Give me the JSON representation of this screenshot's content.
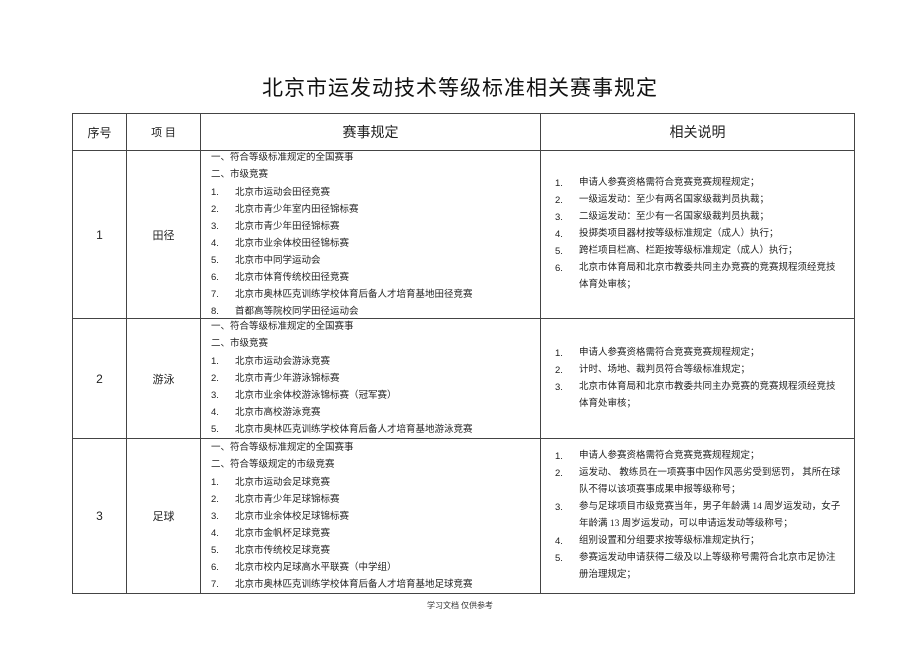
{
  "title": "北京市运发动技术等级标准相关赛事规定",
  "headers": [
    "序号",
    "项 目",
    "赛事规定",
    "相关说明"
  ],
  "rows": [
    {
      "no": "1",
      "sport": "田径",
      "rules": [
        {
          "n": "",
          "t": "一、符合等级标准规定的全国赛事"
        },
        {
          "n": "",
          "t": "二、市级竞赛"
        },
        {
          "n": "1.",
          "t": "北京市运动会田径竞赛"
        },
        {
          "n": "2.",
          "t": "北京市青少年室内田径锦标赛"
        },
        {
          "n": "3.",
          "t": "北京市青少年田径锦标赛"
        },
        {
          "n": "4.",
          "t": "北京市业余体校田径锦标赛"
        },
        {
          "n": "5.",
          "t": "北京市中同学运动会"
        },
        {
          "n": "6.",
          "t": "北京市体育传统校田径竞赛"
        },
        {
          "n": "7.",
          "t": "北京市奥林匹克训练学校体育后备人才培育基地田径竞赛"
        },
        {
          "n": "8.",
          "t": "首都高等院校同学田径运动会"
        }
      ],
      "notes": [
        {
          "n": "1.",
          "t": "申请人参赛资格需符合竞赛竞赛规程规定；"
        },
        {
          "n": "2.",
          "t": "一级运发动：至少有两名国家级裁判员执裁；"
        },
        {
          "n": "3.",
          "t": "二级运发动：至少有一名国家级裁判员执裁；"
        },
        {
          "n": "4.",
          "t": "投掷类项目器材按等级标准规定（成人）执行；"
        },
        {
          "n": "5.",
          "t": "跨栏项目栏高、栏距按等级标准规定（成人）执行；"
        },
        {
          "n": "6.",
          "t": "北京市体育局和北京市教委共同主办竞赛的竞赛规程须经竞技体育处审核；"
        }
      ]
    },
    {
      "no": "2",
      "sport": "游泳",
      "rules": [
        {
          "n": "",
          "t": "一、符合等级标准规定的全国赛事"
        },
        {
          "n": "",
          "t": "二、市级竞赛"
        },
        {
          "n": "1.",
          "t": "北京市运动会游泳竞赛"
        },
        {
          "n": "2.",
          "t": "北京市青少年游泳锦标赛"
        },
        {
          "n": "3.",
          "t": "北京市业余体校游泳锦标赛（冠军赛）"
        },
        {
          "n": "4.",
          "t": "北京市高校游泳竞赛"
        },
        {
          "n": "5.",
          "t": "北京市奥林匹克训练学校体育后备人才培育基地游泳竞赛"
        }
      ],
      "notes": [
        {
          "n": "1.",
          "t": "申请人参赛资格需符合竞赛竞赛规程规定；"
        },
        {
          "n": "2.",
          "t": "计时、场地、裁判员符合等级标准规定；"
        },
        {
          "n": "3.",
          "t": "北京市体育局和北京市教委共同主办竞赛的竞赛规程须经竞技体育处审核；"
        }
      ]
    },
    {
      "no": "3",
      "sport": "足球",
      "rules": [
        {
          "n": "",
          "t": "一、符合等级标准规定的全国赛事"
        },
        {
          "n": "",
          "t": "二、符合等级规定的市级竞赛"
        },
        {
          "n": "1.",
          "t": "北京市运动会足球竞赛"
        },
        {
          "n": "2.",
          "t": "北京市青少年足球锦标赛"
        },
        {
          "n": "3.",
          "t": "北京市业余体校足球锦标赛"
        },
        {
          "n": "4.",
          "t": "北京市金帆杯足球竞赛"
        },
        {
          "n": "5.",
          "t": "北京市传统校足球竞赛"
        },
        {
          "n": "6.",
          "t": "北京市校内足球高水平联赛（中学组）"
        },
        {
          "n": "7.",
          "t": "北京市奥林匹克训练学校体育后备人才培育基地足球竞赛"
        }
      ],
      "notes": [
        {
          "n": "1.",
          "t": "申请人参赛资格需符合竞赛竞赛规程规定；"
        },
        {
          "n": "2.",
          "t": "运发动、 教练员在一项赛事中因作风恶劣受到惩罚， 其所在球队不得以该项赛事成果申报等级称号；"
        },
        {
          "n": "3.",
          "t": "参与足球项目市级竞赛当年，男子年龄满 14 周岁运发动，女子年龄满 13 周岁运发动，可以申请运发动等级称号；"
        },
        {
          "n": "4.",
          "t": "组别设置和分组要求按等级标准规定执行；"
        },
        {
          "n": "5.",
          "t": "参赛运发动申请获得二级及以上等级称号需符合北京市足协注册治理规定；"
        }
      ]
    }
  ],
  "footer": "学习文档 仅供参考"
}
